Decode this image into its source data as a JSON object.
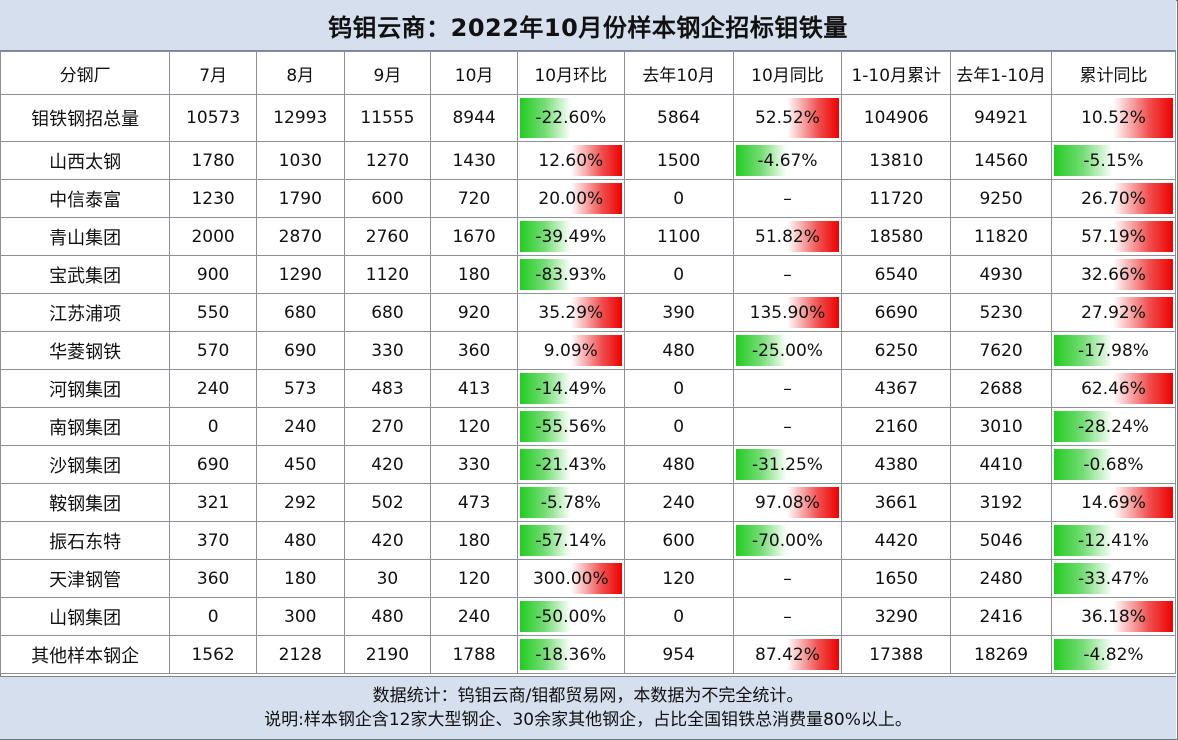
{
  "title": "钨钼云商：2022年10月份样本钢企招标钼铁量",
  "headers": [
    "分钢厂",
    "7月",
    "8月",
    "9月",
    "10月",
    "10月环比",
    "去年10月",
    "10月同比",
    "1-10月累计",
    "去年1-10月",
    "累计同比"
  ],
  "rows": [
    {
      "name": "钼铁钢招总量",
      "m7": "10573",
      "m8": "12993",
      "m9": "11555",
      "m10": "8944",
      "mom": "-22.60%",
      "ly10": "5864",
      "yoy": "52.52%",
      "cum": "104906",
      "lycum": "94921",
      "cumyoy": "10.52%"
    },
    {
      "name": "山西太钢",
      "m7": "1780",
      "m8": "1030",
      "m9": "1270",
      "m10": "1430",
      "mom": "12.60%",
      "ly10": "1500",
      "yoy": "-4.67%",
      "cum": "13810",
      "lycum": "14560",
      "cumyoy": "-5.15%"
    },
    {
      "name": "中信泰富",
      "m7": "1230",
      "m8": "1790",
      "m9": "600",
      "m10": "720",
      "mom": "20.00%",
      "ly10": "0",
      "yoy": "–",
      "cum": "11720",
      "lycum": "9250",
      "cumyoy": "26.70%"
    },
    {
      "name": "青山集团",
      "m7": "2000",
      "m8": "2870",
      "m9": "2760",
      "m10": "1670",
      "mom": "-39.49%",
      "ly10": "1100",
      "yoy": "51.82%",
      "cum": "18580",
      "lycum": "11820",
      "cumyoy": "57.19%"
    },
    {
      "name": "宝武集团",
      "m7": "900",
      "m8": "1290",
      "m9": "1120",
      "m10": "180",
      "mom": "-83.93%",
      "ly10": "0",
      "yoy": "–",
      "cum": "6540",
      "lycum": "4930",
      "cumyoy": "32.66%"
    },
    {
      "name": "江苏浦项",
      "m7": "550",
      "m8": "680",
      "m9": "680",
      "m10": "920",
      "mom": "35.29%",
      "ly10": "390",
      "yoy": "135.90%",
      "cum": "6690",
      "lycum": "5230",
      "cumyoy": "27.92%"
    },
    {
      "name": "华菱钢铁",
      "m7": "570",
      "m8": "690",
      "m9": "330",
      "m10": "360",
      "mom": "9.09%",
      "ly10": "480",
      "yoy": "-25.00%",
      "cum": "6250",
      "lycum": "7620",
      "cumyoy": "-17.98%"
    },
    {
      "name": "河钢集团",
      "m7": "240",
      "m8": "573",
      "m9": "483",
      "m10": "413",
      "mom": "-14.49%",
      "ly10": "0",
      "yoy": "–",
      "cum": "4367",
      "lycum": "2688",
      "cumyoy": "62.46%"
    },
    {
      "name": "南钢集团",
      "m7": "0",
      "m8": "240",
      "m9": "270",
      "m10": "120",
      "mom": "-55.56%",
      "ly10": "0",
      "yoy": "–",
      "cum": "2160",
      "lycum": "3010",
      "cumyoy": "-28.24%"
    },
    {
      "name": "沙钢集团",
      "m7": "690",
      "m8": "450",
      "m9": "420",
      "m10": "330",
      "mom": "-21.43%",
      "ly10": "480",
      "yoy": "-31.25%",
      "cum": "4380",
      "lycum": "4410",
      "cumyoy": "-0.68%"
    },
    {
      "name": "鞍钢集团",
      "m7": "321",
      "m8": "292",
      "m9": "502",
      "m10": "473",
      "mom": "-5.78%",
      "ly10": "240",
      "yoy": "97.08%",
      "cum": "3661",
      "lycum": "3192",
      "cumyoy": "14.69%"
    },
    {
      "name": "振石东特",
      "m7": "370",
      "m8": "480",
      "m9": "420",
      "m10": "180",
      "mom": "-57.14%",
      "ly10": "600",
      "yoy": "-70.00%",
      "cum": "4420",
      "lycum": "5046",
      "cumyoy": "-12.41%"
    },
    {
      "name": "天津钢管",
      "m7": "360",
      "m8": "180",
      "m9": "30",
      "m10": "120",
      "mom": "300.00%",
      "ly10": "120",
      "yoy": "–",
      "cum": "1650",
      "lycum": "2480",
      "cumyoy": "-33.47%"
    },
    {
      "name": "山钢集团",
      "m7": "0",
      "m8": "300",
      "m9": "480",
      "m10": "240",
      "mom": "-50.00%",
      "ly10": "0",
      "yoy": "–",
      "cum": "3290",
      "lycum": "2416",
      "cumyoy": "36.18%"
    },
    {
      "name": "其他样本钢企",
      "m7": "1562",
      "m8": "2128",
      "m9": "2190",
      "m10": "1788",
      "mom": "-18.36%",
      "ly10": "954",
      "yoy": "87.42%",
      "cum": "17388",
      "lycum": "18269",
      "cumyoy": "-4.82%"
    }
  ],
  "footer": {
    "line1": "数据统计：钨钼云商/钼都贸易网，本数据为不完全统计。",
    "line2": "说明:样本钢企含12家大型钢企、30余家其他钢企，占比全国钼铁总消费量80%以上。"
  },
  "colors": {
    "positive": "#ee0000",
    "negative": "#22cc22",
    "header_bg": "#d6dfed"
  }
}
